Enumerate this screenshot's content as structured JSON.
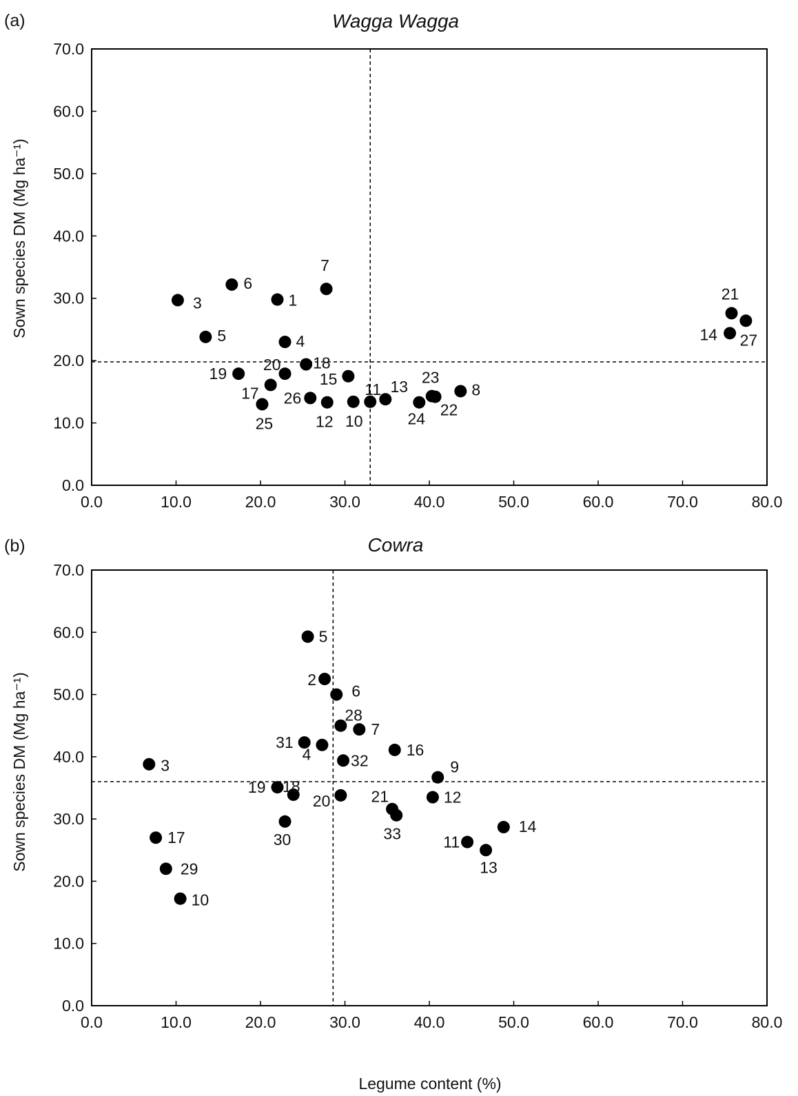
{
  "figure": {
    "xlabel": "Legume content (%)"
  },
  "chart_data": [
    {
      "type": "scatter",
      "panel_label": "(a)",
      "title": "Wagga Wagga",
      "xlabel": "Legume content (%)",
      "ylabel": "Sown species DM (Mg ha⁻¹)",
      "xlim": [
        0,
        80
      ],
      "ylim": [
        0,
        70
      ],
      "xticks": [
        "0.0",
        "10.0",
        "20.0",
        "30.0",
        "40.0",
        "50.0",
        "60.0",
        "70.0",
        "80.0"
      ],
      "yticks": [
        "0.0",
        "10.0",
        "20.0",
        "30.0",
        "40.0",
        "50.0",
        "60.0",
        "70.0"
      ],
      "grid": false,
      "reference_lines": {
        "x": 33.0,
        "y": 19.8
      },
      "points": [
        {
          "id": "1",
          "x": 22.0,
          "y": 29.8
        },
        {
          "id": "3",
          "x": 10.2,
          "y": 29.7
        },
        {
          "id": "4",
          "x": 22.9,
          "y": 23.0
        },
        {
          "id": "5",
          "x": 13.5,
          "y": 23.8
        },
        {
          "id": "6",
          "x": 16.6,
          "y": 32.2
        },
        {
          "id": "7",
          "x": 27.8,
          "y": 31.5
        },
        {
          "id": "8",
          "x": 43.7,
          "y": 15.1
        },
        {
          "id": "10",
          "x": 31.0,
          "y": 13.4
        },
        {
          "id": "11",
          "x": 33.0,
          "y": 13.4
        },
        {
          "id": "12",
          "x": 27.9,
          "y": 13.3
        },
        {
          "id": "13",
          "x": 34.8,
          "y": 13.8
        },
        {
          "id": "14",
          "x": 75.6,
          "y": 24.4
        },
        {
          "id": "15",
          "x": 30.4,
          "y": 17.5
        },
        {
          "id": "17",
          "x": 21.2,
          "y": 16.1
        },
        {
          "id": "18",
          "x": 25.4,
          "y": 19.4
        },
        {
          "id": "19",
          "x": 17.4,
          "y": 17.9
        },
        {
          "id": "20",
          "x": 22.9,
          "y": 17.9
        },
        {
          "id": "21",
          "x": 75.8,
          "y": 27.6
        },
        {
          "id": "22",
          "x": 40.7,
          "y": 14.2
        },
        {
          "id": "23",
          "x": 40.3,
          "y": 14.3
        },
        {
          "id": "24",
          "x": 38.8,
          "y": 13.3
        },
        {
          "id": "25",
          "x": 20.2,
          "y": 13.0
        },
        {
          "id": "26",
          "x": 25.9,
          "y": 14.0
        },
        {
          "id": "27",
          "x": 77.5,
          "y": 26.4
        }
      ]
    },
    {
      "type": "scatter",
      "panel_label": "(b)",
      "title": "Cowra",
      "xlabel": "Legume content (%)",
      "ylabel": "Sown species DM (Mg ha⁻¹)",
      "xlim": [
        0,
        80
      ],
      "ylim": [
        0,
        70
      ],
      "xticks": [
        "0.0",
        "10.0",
        "20.0",
        "30.0",
        "40.0",
        "50.0",
        "60.0",
        "70.0",
        "80.0"
      ],
      "yticks": [
        "0.0",
        "10.0",
        "20.0",
        "30.0",
        "40.0",
        "50.0",
        "60.0",
        "70.0"
      ],
      "grid": false,
      "reference_lines": {
        "x": 28.6,
        "y": 36.0
      },
      "points": [
        {
          "id": "2",
          "x": 27.6,
          "y": 52.5
        },
        {
          "id": "3",
          "x": 6.8,
          "y": 38.8
        },
        {
          "id": "4",
          "x": 27.3,
          "y": 41.9
        },
        {
          "id": "5",
          "x": 25.6,
          "y": 59.3
        },
        {
          "id": "6",
          "x": 29.0,
          "y": 50.0
        },
        {
          "id": "7",
          "x": 31.7,
          "y": 44.4
        },
        {
          "id": "9",
          "x": 41.0,
          "y": 36.7
        },
        {
          "id": "10",
          "x": 10.5,
          "y": 17.2
        },
        {
          "id": "11",
          "x": 44.5,
          "y": 26.3
        },
        {
          "id": "12",
          "x": 40.4,
          "y": 33.5
        },
        {
          "id": "13",
          "x": 46.7,
          "y": 25.0
        },
        {
          "id": "14",
          "x": 48.8,
          "y": 28.7
        },
        {
          "id": "16",
          "x": 35.9,
          "y": 41.1
        },
        {
          "id": "17",
          "x": 7.6,
          "y": 27.0
        },
        {
          "id": "18",
          "x": 23.9,
          "y": 33.9
        },
        {
          "id": "19",
          "x": 22.0,
          "y": 35.1
        },
        {
          "id": "20",
          "x": 29.5,
          "y": 33.8
        },
        {
          "id": "21",
          "x": 35.6,
          "y": 31.6
        },
        {
          "id": "28",
          "x": 29.5,
          "y": 45.0
        },
        {
          "id": "29",
          "x": 8.8,
          "y": 22.0
        },
        {
          "id": "30",
          "x": 22.9,
          "y": 29.6
        },
        {
          "id": "31",
          "x": 25.2,
          "y": 42.3
        },
        {
          "id": "32",
          "x": 29.8,
          "y": 39.4
        },
        {
          "id": "33",
          "x": 36.1,
          "y": 30.6
        }
      ]
    }
  ]
}
